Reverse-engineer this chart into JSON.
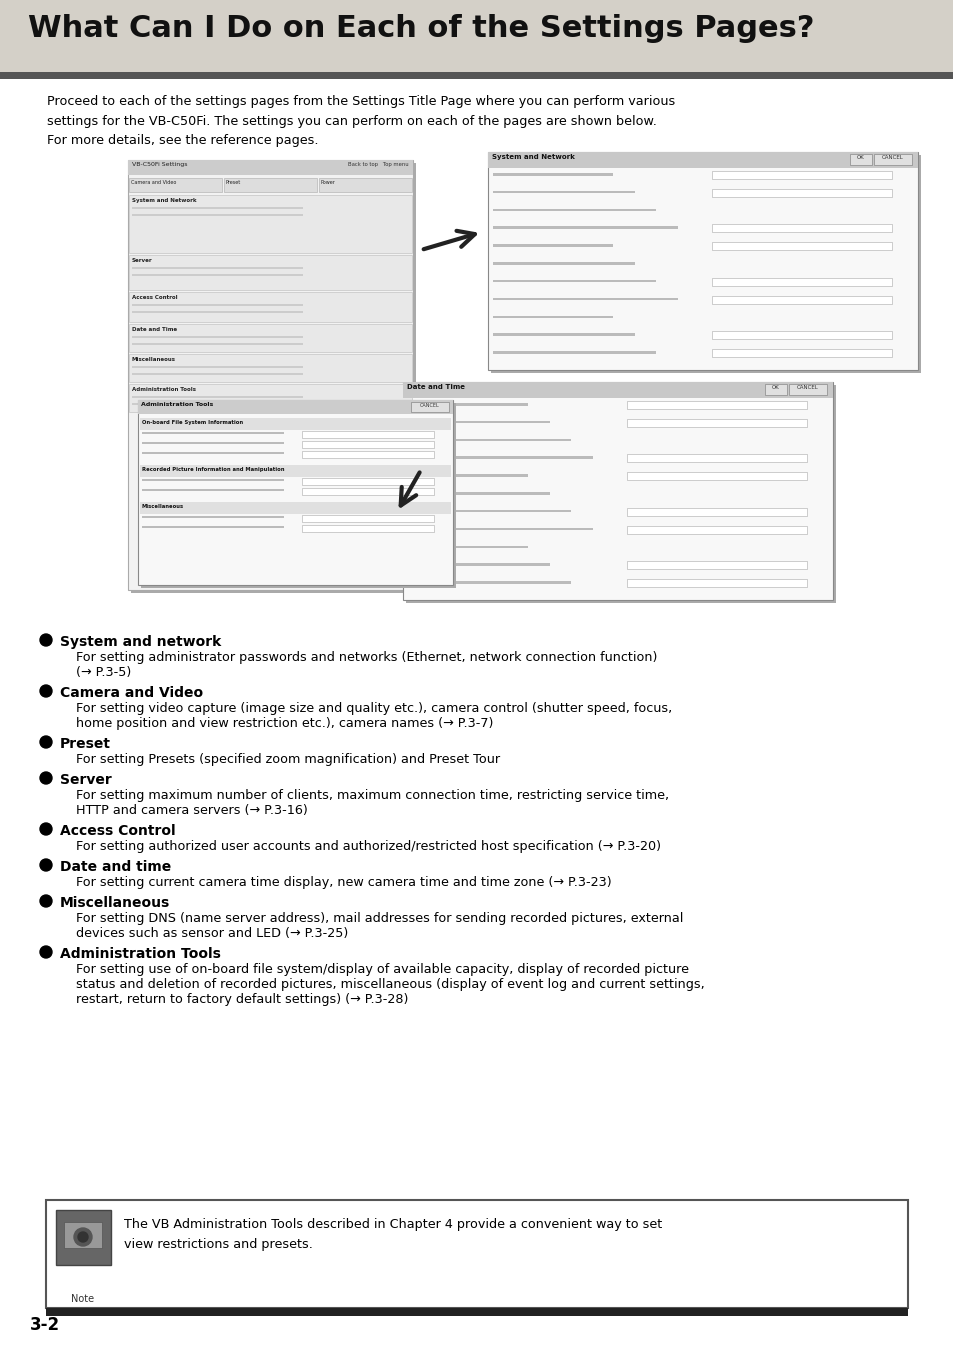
{
  "title": "What Can I Do on Each of the Settings Pages?",
  "title_bg": "#d4d0c8",
  "title_bar_color": "#555555",
  "page_bg": "#ffffff",
  "intro_text": "Proceed to each of the settings pages from the Settings Title Page where you can perform various\nsettings for the VB-C50Fi. The settings you can perform on each of the pages are shown below.\nFor more details, see the reference pages.",
  "bullet_items": [
    {
      "heading": "System and network",
      "body": "For setting administrator passwords and networks (Ethernet, network connection function)\n(→ P.3-5)"
    },
    {
      "heading": "Camera and Video",
      "body": "For setting video capture (image size and quality etc.), camera control (shutter speed, focus,\nhome position and view restriction etc.), camera names (→ P.3-7)"
    },
    {
      "heading": "Preset",
      "body": "For setting Presets (specified zoom magnification) and Preset Tour"
    },
    {
      "heading": "Server",
      "body": "For setting maximum number of clients, maximum connection time, restricting service time,\nHTTP and camera servers (→ P.3-16)"
    },
    {
      "heading": "Access Control",
      "body": "For setting authorized user accounts and authorized/restricted host specification (→ P.3-20)"
    },
    {
      "heading": "Date and time",
      "body": "For setting current camera time display, new camera time and time zone (→ P.3-23)"
    },
    {
      "heading": "Miscellaneous",
      "body": "For setting DNS (name server address), mail addresses for sending recorded pictures, external\ndevices such as sensor and LED (→ P.3-25)"
    },
    {
      "heading": "Administration Tools",
      "body": "For setting use of on-board file system/display of available capacity, display of recorded picture\nstatus and deletion of recorded pictures, miscellaneous (display of event log and current settings,\nrestart, return to factory default settings) (→ P.3-28)"
    }
  ],
  "note_text": "The VB Administration Tools described in Chapter 4 provide a convenient way to set\nview restrictions and presets.",
  "page_number": "3-2",
  "note_border_color": "#555555",
  "note_bottom_bar_color": "#222222",
  "text_color": "#000000"
}
